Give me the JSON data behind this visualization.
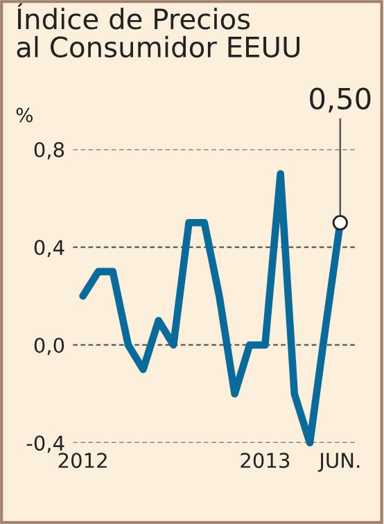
{
  "chart_data": {
    "type": "line",
    "title": "Índice de Precios\nal Consumidor EEUU",
    "ylabel": "%",
    "x": [
      "2012-01",
      "2012-02",
      "2012-03",
      "2012-04",
      "2012-05",
      "2012-06",
      "2012-07",
      "2012-08",
      "2012-09",
      "2012-10",
      "2012-11",
      "2012-12",
      "2013-01",
      "2013-02",
      "2013-03",
      "2013-04",
      "2013-05",
      "2013-06"
    ],
    "series": [
      {
        "color": "#0a6a9a",
        "values": [
          0.2,
          0.3,
          0.3,
          0.0,
          -0.1,
          0.1,
          0.0,
          0.5,
          0.5,
          0.2,
          -0.2,
          0.0,
          0.0,
          0.7,
          -0.2,
          -0.4,
          0.05,
          0.5
        ]
      }
    ],
    "xlim": [
      "2011-12-12",
      "2013-07-05"
    ],
    "xticks": [
      {
        "value": "2012-01",
        "label": "2012"
      },
      {
        "value": "2013-01",
        "label": "2013"
      },
      {
        "value": "2013-06",
        "label": "JUN."
      }
    ],
    "ylim": [
      -0.4,
      0.8
    ],
    "yticks": [
      {
        "value": -0.4,
        "label": "-0,4"
      },
      {
        "value": 0.0,
        "label": "0,0"
      },
      {
        "value": 0.4,
        "label": "0,4"
      },
      {
        "value": 0.8,
        "label": "0,8"
      }
    ],
    "grid": "y",
    "line_style": "solid",
    "marker": "none",
    "annotations": [
      {
        "text": "0,50",
        "x": "2013-06",
        "y": 0.5
      }
    ]
  }
}
